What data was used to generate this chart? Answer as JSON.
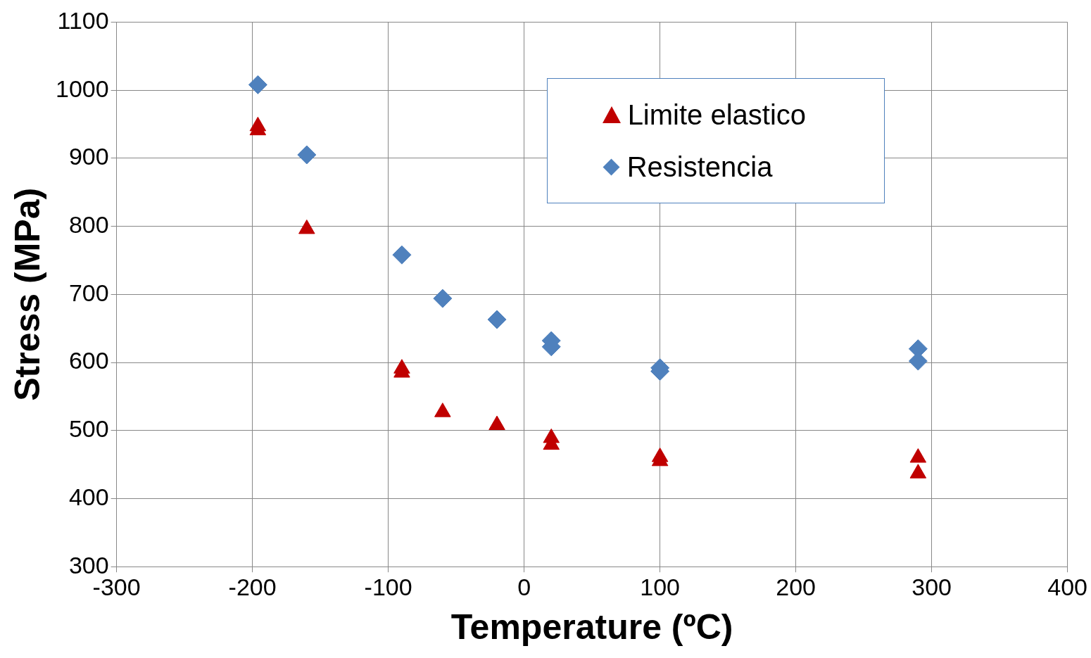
{
  "chart_data": {
    "type": "scatter",
    "xlabel": "Temperature (ºC)",
    "ylabel": "Stress (MPa)",
    "xlim": [
      -300,
      400
    ],
    "xticks": [
      -300,
      -200,
      -100,
      0,
      100,
      200,
      300,
      400
    ],
    "ylim": [
      300,
      1100
    ],
    "yticks": [
      300,
      400,
      500,
      600,
      700,
      800,
      900,
      1000,
      1100
    ],
    "grid": true,
    "legend": "top right",
    "series": [
      {
        "name": "Limite elastico",
        "color": "#c00000",
        "marker": "triangle",
        "x": [
          -196,
          -196,
          -160,
          -90,
          -90,
          -60,
          -20,
          20,
          20,
          100,
          100,
          290,
          290
        ],
        "values": [
          947,
          941,
          796,
          591,
          585,
          527,
          508,
          489,
          479,
          461,
          455,
          460,
          437
        ]
      },
      {
        "name": "Resistencia",
        "color": "#4f81bd",
        "marker": "diamond",
        "x": [
          -196,
          -160,
          -90,
          -60,
          -20,
          20,
          20,
          100,
          100,
          290,
          290
        ],
        "values": [
          1008,
          905,
          758,
          694,
          663,
          632,
          623,
          592,
          587,
          620,
          602
        ]
      }
    ]
  }
}
